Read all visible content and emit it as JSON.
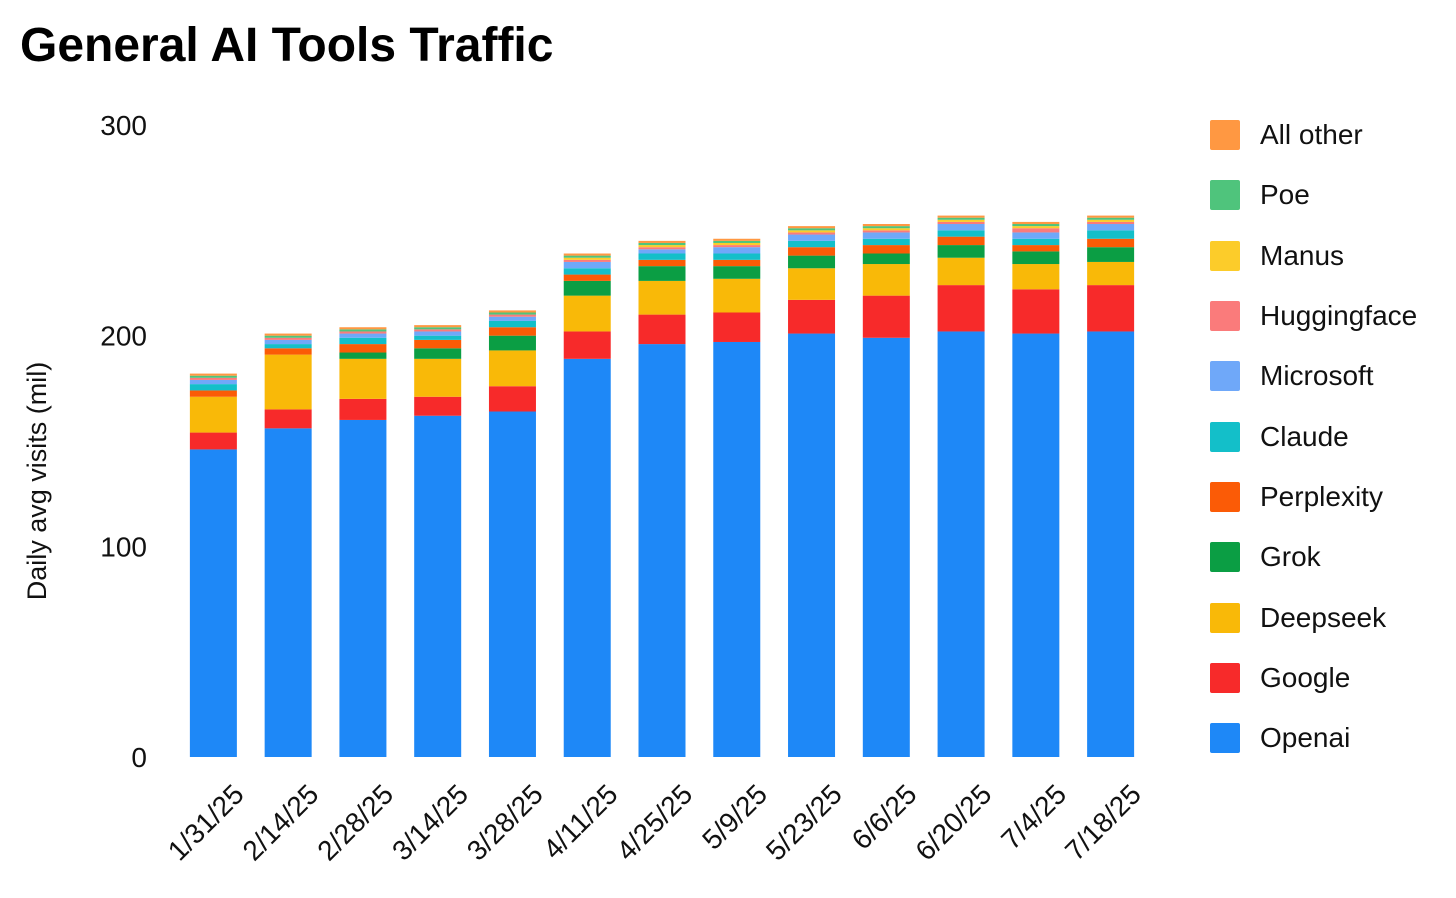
{
  "chart_data": {
    "type": "bar",
    "stacked": true,
    "title": "General AI Tools Traffic",
    "xlabel": "",
    "ylabel": "Daily avg visits (mil)",
    "ylim": [
      0,
      300
    ],
    "yticks": [
      0,
      100,
      200,
      300
    ],
    "grid": false,
    "legend_position": "right",
    "categories": [
      "1/31/25",
      "2/14/25",
      "2/28/25",
      "3/14/25",
      "3/28/25",
      "4/11/25",
      "4/25/25",
      "5/9/25",
      "5/23/25",
      "6/6/25",
      "6/20/25",
      "7/4/25",
      "7/18/25"
    ],
    "series": [
      {
        "name": "Openai",
        "color": "#1e88f7",
        "values": [
          146,
          156,
          160,
          162,
          164,
          189,
          196,
          197,
          201,
          199,
          202,
          201,
          202
        ]
      },
      {
        "name": "Google",
        "color": "#f72a2a",
        "values": [
          8,
          9,
          10,
          9,
          12,
          13,
          14,
          14,
          16,
          20,
          22,
          21,
          22
        ]
      },
      {
        "name": "Deepseek",
        "color": "#f9b908",
        "values": [
          17,
          26,
          19,
          18,
          17,
          17,
          16,
          16,
          15,
          15,
          13,
          12,
          11
        ]
      },
      {
        "name": "Grok",
        "color": "#0b9e44",
        "values": [
          0,
          0,
          3,
          5,
          7,
          7,
          7,
          6,
          6,
          5,
          6,
          6,
          7
        ]
      },
      {
        "name": "Perplexity",
        "color": "#fb5b06",
        "values": [
          3,
          3,
          4,
          4,
          4,
          3,
          3,
          3,
          4,
          4,
          4,
          3,
          4
        ]
      },
      {
        "name": "Claude",
        "color": "#13bfc9",
        "values": [
          3,
          2,
          3,
          2,
          3,
          3,
          3,
          3,
          3,
          3,
          3,
          3,
          4
        ]
      },
      {
        "name": "Microsoft",
        "color": "#6fa8f9",
        "values": [
          2,
          2,
          2,
          2,
          2,
          3,
          2,
          3,
          3,
          3,
          3,
          3,
          3
        ]
      },
      {
        "name": "Huggingface",
        "color": "#fa7b7b",
        "values": [
          1,
          1,
          1,
          1,
          1,
          1,
          1,
          1,
          1,
          1,
          1,
          2,
          1
        ]
      },
      {
        "name": "Manus",
        "color": "#fccc2a",
        "values": [
          0,
          0,
          0,
          0,
          0,
          1,
          1,
          1,
          1,
          1,
          1,
          1,
          1
        ]
      },
      {
        "name": "Poe",
        "color": "#4fc47c",
        "values": [
          1,
          1,
          1,
          1,
          1,
          1,
          1,
          1,
          1,
          1,
          1,
          1,
          1
        ]
      },
      {
        "name": "All other",
        "color": "#ff9842",
        "values": [
          1,
          1,
          1,
          1,
          1,
          1,
          1,
          1,
          1,
          1,
          1,
          1,
          1
        ]
      }
    ]
  }
}
